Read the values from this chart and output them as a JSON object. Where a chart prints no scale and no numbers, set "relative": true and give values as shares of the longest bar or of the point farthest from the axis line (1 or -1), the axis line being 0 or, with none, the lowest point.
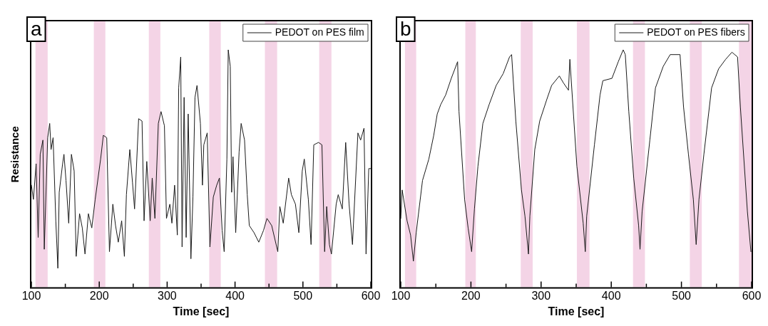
{
  "chart_data": [
    {
      "type": "line",
      "relative": true,
      "annotations": [
        "a"
      ],
      "xlabel": "Time [sec]",
      "ylabel": "Resistance",
      "legend": "top right",
      "xlim": [
        100,
        600
      ],
      "xticks": [
        100,
        {
          "value": 150,
          "label": null
        },
        200,
        {
          "value": 250,
          "label": null
        },
        300,
        {
          "value": 350,
          "label": null
        },
        400,
        {
          "value": 450,
          "label": null
        },
        500,
        {
          "value": 550,
          "label": null
        },
        600
      ],
      "bands": [
        {
          "axis": "x",
          "from": 106,
          "to": 124,
          "color": "#f4d4e6"
        },
        {
          "axis": "x",
          "from": 192,
          "to": 209,
          "color": "#f4d4e6"
        },
        {
          "axis": "x",
          "from": 273,
          "to": 290,
          "color": "#f4d4e6"
        },
        {
          "axis": "x",
          "from": 362,
          "to": 379,
          "color": "#f4d4e6"
        },
        {
          "axis": "x",
          "from": 444,
          "to": 462,
          "color": "#f4d4e6"
        },
        {
          "axis": "x",
          "from": 524,
          "to": 542,
          "color": "#f4d4e6"
        }
      ],
      "series": [
        {
          "name": "PEDOT on PES film",
          "color": "#1a1a1a",
          "x": [
            100,
            103,
            107,
            110,
            113,
            117,
            119,
            124,
            127,
            129,
            132,
            136,
            139,
            141,
            146,
            148,
            151,
            155,
            159,
            163,
            166,
            171,
            175,
            179,
            184,
            189,
            194,
            202,
            206,
            211,
            215,
            220,
            224,
            228,
            233,
            237,
            240,
            245,
            249,
            252,
            258,
            263,
            266,
            270,
            275,
            278,
            282,
            287,
            291,
            296,
            299,
            304,
            307,
            311,
            315,
            317,
            320,
            322,
            325,
            328,
            331,
            335,
            338,
            341,
            344,
            349,
            352,
            354,
            359,
            363,
            368,
            373,
            377,
            381,
            384,
            388,
            390,
            393,
            395,
            397,
            401,
            406,
            409,
            414,
            418,
            421,
            428,
            435,
            442,
            447,
            454,
            463,
            466,
            471,
            479,
            483,
            489,
            494,
            499,
            502,
            508,
            512,
            516,
            523,
            528,
            532,
            535,
            539,
            542,
            549,
            552,
            558,
            563,
            568,
            573,
            581,
            585,
            590,
            593,
            597,
            600
          ],
          "values": [
            0.43,
            0.37,
            0.52,
            0.21,
            0.56,
            0.62,
            0.16,
            0.63,
            0.69,
            0.58,
            0.63,
            0.28,
            0.08,
            0.4,
            0.52,
            0.56,
            0.45,
            0.27,
            0.56,
            0.49,
            0.13,
            0.31,
            0.25,
            0.14,
            0.31,
            0.25,
            0.37,
            0.54,
            0.64,
            0.63,
            0.15,
            0.35,
            0.26,
            0.19,
            0.28,
            0.13,
            0.39,
            0.58,
            0.44,
            0.33,
            0.71,
            0.7,
            0.28,
            0.53,
            0.28,
            0.46,
            0.29,
            0.69,
            0.74,
            0.68,
            0.29,
            0.35,
            0.27,
            0.43,
            0.22,
            0.84,
            0.97,
            0.17,
            0.8,
            0.21,
            0.73,
            0.12,
            0.38,
            0.8,
            0.85,
            0.69,
            0.43,
            0.6,
            0.65,
            0.17,
            0.38,
            0.43,
            0.46,
            0.24,
            0.15,
            0.54,
            1.0,
            0.93,
            0.4,
            0.55,
            0.23,
            0.57,
            0.69,
            0.62,
            0.39,
            0.26,
            0.23,
            0.19,
            0.24,
            0.29,
            0.26,
            0.15,
            0.34,
            0.27,
            0.46,
            0.39,
            0.35,
            0.23,
            0.49,
            0.54,
            0.37,
            0.18,
            0.6,
            0.61,
            0.6,
            0.15,
            0.34,
            0.18,
            0.14,
            0.35,
            0.39,
            0.33,
            0.61,
            0.35,
            0.18,
            0.65,
            0.62,
            0.67,
            0.14,
            0.5,
            0.5
          ]
        }
      ]
    },
    {
      "type": "line",
      "relative": true,
      "annotations": [
        "b"
      ],
      "xlabel": "Time [sec]",
      "legend": "top right",
      "xlim": [
        100,
        600
      ],
      "xticks": [
        100,
        {
          "value": 150,
          "label": null
        },
        200,
        {
          "value": 250,
          "label": null
        },
        300,
        {
          "value": 350,
          "label": null
        },
        400,
        {
          "value": 450,
          "label": null
        },
        500,
        {
          "value": 550,
          "label": null
        },
        600
      ],
      "bands": [
        {
          "axis": "x",
          "from": 106,
          "to": 122,
          "color": "#f4d4e6"
        },
        {
          "axis": "x",
          "from": 192,
          "to": 207,
          "color": "#f4d4e6"
        },
        {
          "axis": "x",
          "from": 271,
          "to": 288,
          "color": "#f4d4e6"
        },
        {
          "axis": "x",
          "from": 351,
          "to": 369,
          "color": "#f4d4e6"
        },
        {
          "axis": "x",
          "from": 431,
          "to": 448,
          "color": "#f4d4e6"
        },
        {
          "axis": "x",
          "from": 512,
          "to": 529,
          "color": "#f4d4e6"
        },
        {
          "axis": "x",
          "from": 582,
          "to": 600,
          "color": "#f4d4e6"
        }
      ],
      "series": [
        {
          "name": "PEDOT on PES fibers",
          "color": "#1a1a1a",
          "x": [
            100,
            102,
            109,
            114,
            118,
            122,
            131,
            140,
            147,
            152,
            157,
            164,
            172,
            181,
            183,
            191,
            196,
            201,
            205,
            210,
            217,
            226,
            236,
            246,
            255,
            258,
            264,
            272,
            277,
            282,
            284,
            291,
            298,
            308,
            315,
            326,
            332,
            339,
            341,
            351,
            360,
            363,
            365,
            376,
            384,
            388,
            401,
            410,
            417,
            420,
            425,
            432,
            439,
            441,
            444,
            455,
            463,
            474,
            484,
            498,
            503,
            510,
            517,
            521,
            525,
            532,
            543,
            553,
            563,
            572,
            580,
            584,
            594,
            599
          ],
          "values": [
            0.29,
            0.41,
            0.28,
            0.22,
            0.11,
            0.23,
            0.45,
            0.54,
            0.64,
            0.73,
            0.77,
            0.81,
            0.88,
            0.95,
            0.74,
            0.37,
            0.25,
            0.15,
            0.33,
            0.51,
            0.69,
            0.77,
            0.85,
            0.9,
            0.97,
            0.98,
            0.7,
            0.41,
            0.3,
            0.14,
            0.3,
            0.58,
            0.7,
            0.79,
            0.85,
            0.89,
            0.86,
            0.83,
            0.96,
            0.51,
            0.27,
            0.15,
            0.3,
            0.6,
            0.81,
            0.87,
            0.88,
            0.95,
            1.0,
            0.98,
            0.74,
            0.46,
            0.26,
            0.16,
            0.32,
            0.62,
            0.84,
            0.93,
            0.98,
            0.98,
            0.76,
            0.56,
            0.37,
            0.18,
            0.37,
            0.56,
            0.84,
            0.92,
            0.96,
            0.99,
            0.97,
            0.76,
            0.32,
            0.15
          ]
        }
      ]
    }
  ]
}
